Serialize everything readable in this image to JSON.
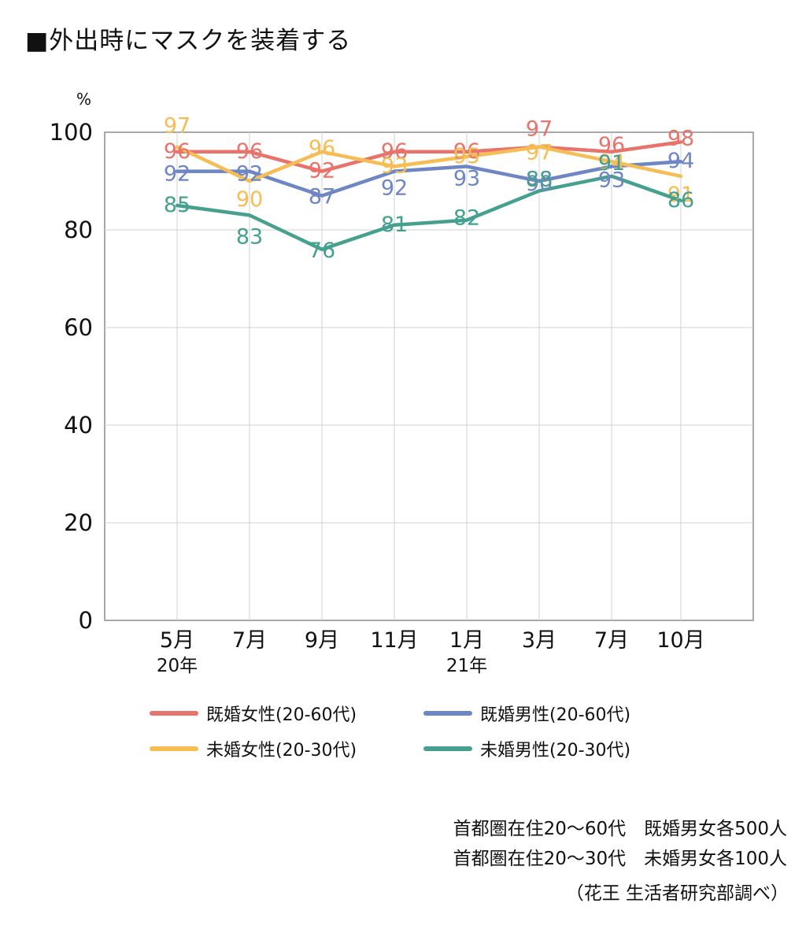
{
  "title": "■外出時にマスクを装着する",
  "chart_data": {
    "type": "line",
    "unit": "%",
    "categories": [
      "5月",
      "7月",
      "9月",
      "11月",
      "1月",
      "3月",
      "7月",
      "10月"
    ],
    "year_labels": [
      "20年",
      "",
      "",
      "",
      "21年",
      "",
      "",
      ""
    ],
    "ylim": [
      0,
      100
    ],
    "yticks": [
      0,
      20,
      40,
      60,
      80,
      100
    ],
    "grid": true,
    "legend_position": "bottom",
    "series": [
      {
        "name": "既婚女性(20-60代)",
        "color": "#e8736b",
        "values": [
          96,
          96,
          92,
          96,
          96,
          97,
          96,
          98
        ]
      },
      {
        "name": "既婚男性(20-60代)",
        "color": "#6f86c4",
        "values": [
          92,
          92,
          87,
          92,
          93,
          90,
          93,
          94
        ]
      },
      {
        "name": "未婚女性(20-30代)",
        "color": "#f5bd53",
        "values": [
          97,
          90,
          96,
          93,
          95,
          97,
          94,
          91
        ]
      },
      {
        "name": "未婚男性(20-30代)",
        "color": "#45a08f",
        "values": [
          85,
          83,
          76,
          81,
          82,
          88,
          91,
          86
        ]
      }
    ]
  },
  "notes": [
    "首都圏在住20〜60代　既婚男女各500人",
    "首都圏在住20〜30代　未婚男女各100人",
    "（花王 生活者研究部調べ）"
  ]
}
